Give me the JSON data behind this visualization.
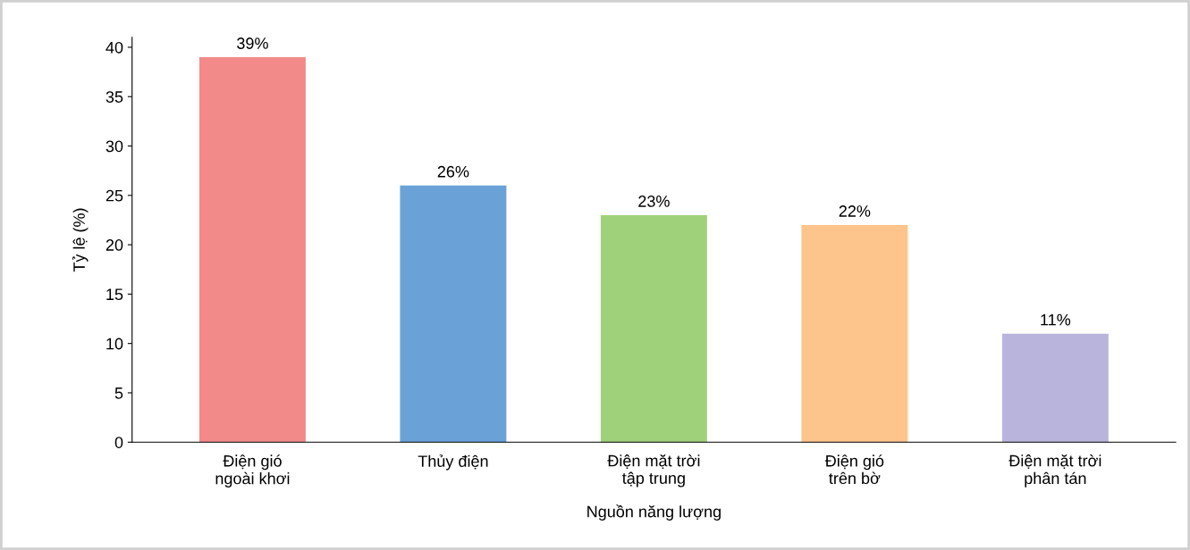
{
  "chart_data": {
    "type": "bar",
    "categories": [
      "Điện gió\nngoài khơi",
      "Thủy điện",
      "Điện mặt trời\ntập trung",
      "Điện gió\ntrên bờ",
      "Điện mặt trời\nphân tán"
    ],
    "values": [
      39,
      26,
      23,
      22,
      11
    ],
    "colors": [
      "#f28a8a",
      "#6aa2d8",
      "#9fd17b",
      "#fdc48c",
      "#b8b4dc"
    ],
    "value_labels": [
      "39%",
      "26%",
      "23%",
      "22%",
      "11%"
    ],
    "xlabel": "Nguồn năng lượng",
    "ylabel": "Tỷ lệ (%)",
    "ylim": [
      0,
      41
    ],
    "yticks": [
      0,
      5,
      10,
      15,
      20,
      25,
      30,
      35,
      40
    ],
    "grid": false
  }
}
